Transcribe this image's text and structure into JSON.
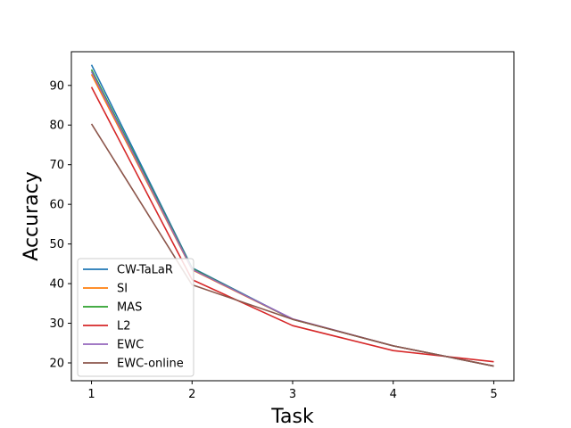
{
  "chart_data": {
    "type": "line",
    "title": "",
    "xlabel": "Task",
    "ylabel": "Accuracy",
    "x": [
      1,
      2,
      3,
      4,
      5
    ],
    "xlim": [
      0.8,
      5.2
    ],
    "ylim": [
      15.5,
      98.5
    ],
    "xticks": [
      "1",
      "2",
      "3",
      "4",
      "5"
    ],
    "yticks": [
      20,
      30,
      40,
      50,
      60,
      70,
      80,
      90
    ],
    "grid": false,
    "legend_position": "lower-left",
    "series": [
      {
        "name": "CW-TaLaR",
        "color": "#1f77b4",
        "values": [
          95.2,
          44.0,
          31.0,
          24.3,
          19.2
        ]
      },
      {
        "name": "SI",
        "color": "#ff7f0e",
        "values": [
          92.8,
          43.5,
          31.0,
          24.3,
          19.2
        ]
      },
      {
        "name": "MAS",
        "color": "#2ca02c",
        "values": [
          94.0,
          43.8,
          31.0,
          24.3,
          19.2
        ]
      },
      {
        "name": "L2",
        "color": "#d62728",
        "values": [
          89.6,
          41.0,
          29.4,
          23.1,
          20.3
        ]
      },
      {
        "name": "EWC",
        "color": "#9467bd",
        "values": [
          93.5,
          43.6,
          31.1,
          24.3,
          19.2
        ]
      },
      {
        "name": "EWC-online",
        "color": "#8c564b",
        "values": [
          80.3,
          39.7,
          31.0,
          24.3,
          19.2
        ]
      }
    ]
  }
}
